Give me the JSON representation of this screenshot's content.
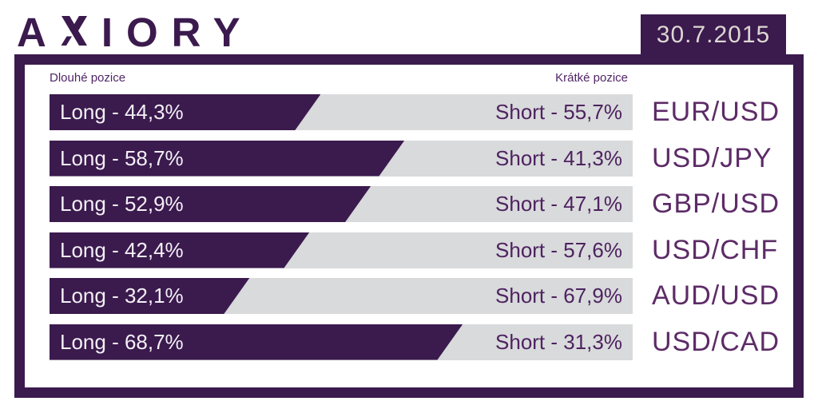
{
  "header": {
    "brand": "AXIORY",
    "brand_first": "A",
    "brand_rest": "IORY",
    "date": "30.7.2015"
  },
  "panel": {
    "long_column_label": "Dlouhé pozice",
    "short_column_label": "Krátké pozice"
  },
  "colors": {
    "brand_purple": "#3b1a4e",
    "bar_long_fill": "#3b1a4e",
    "bar_short_fill": "#d8dadb",
    "pair_label_text": "#5d2b67",
    "short_label_text": "#4e2260",
    "long_label_text": "#f3f0f5",
    "date_text": "#dcd7d2"
  },
  "chart_data": {
    "type": "bar",
    "subtype": "horizontal-100pct-stacked",
    "title": "",
    "categories": [
      "EUR/USD",
      "USD/JPY",
      "GBP/USD",
      "USD/CHF",
      "AUD/USD",
      "USD/CAD"
    ],
    "series": [
      {
        "name": "Long",
        "values": [
          44.3,
          58.7,
          52.9,
          42.4,
          32.1,
          68.7
        ]
      },
      {
        "name": "Short",
        "values": [
          55.7,
          41.3,
          47.1,
          57.6,
          67.9,
          31.3
        ]
      }
    ],
    "xlim": [
      0,
      100
    ],
    "legend_position": "none",
    "grid": false,
    "value_label_format": "decimal-comma",
    "rows": [
      {
        "pair": "EUR/USD",
        "long_pct": 44.3,
        "short_pct": 55.7,
        "long_label": "Long - 44,3%",
        "short_label": "Short - 55,7%"
      },
      {
        "pair": "USD/JPY",
        "long_pct": 58.7,
        "short_pct": 41.3,
        "long_label": "Long - 58,7%",
        "short_label": "Short - 41,3%"
      },
      {
        "pair": "GBP/USD",
        "long_pct": 52.9,
        "short_pct": 47.1,
        "long_label": "Long - 52,9%",
        "short_label": "Short - 47,1%"
      },
      {
        "pair": "USD/CHF",
        "long_pct": 42.4,
        "short_pct": 57.6,
        "long_label": "Long - 42,4%",
        "short_label": "Short - 57,6%"
      },
      {
        "pair": "AUD/USD",
        "long_pct": 32.1,
        "short_pct": 67.9,
        "long_label": "Long - 32,1%",
        "short_label": "Short - 67,9%"
      },
      {
        "pair": "USD/CAD",
        "long_pct": 68.7,
        "short_pct": 31.3,
        "long_label": "Long - 68,7%",
        "short_label": "Short - 31,3%"
      }
    ]
  }
}
